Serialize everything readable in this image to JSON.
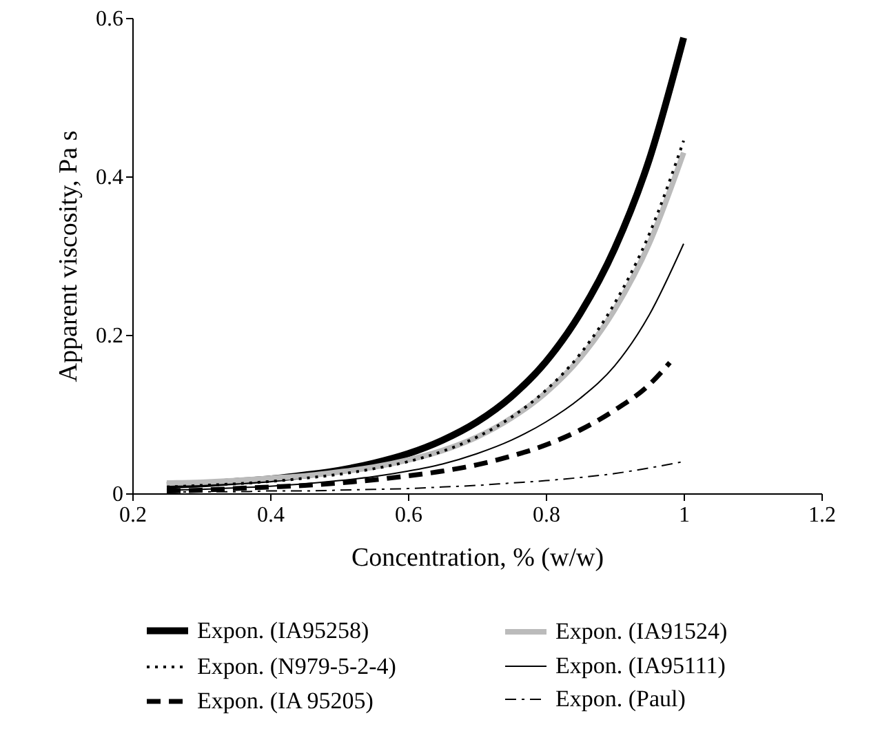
{
  "chart_data": {
    "type": "line",
    "xlabel": "Concentration, % (w/w)",
    "ylabel": "Apparent viscosity, Pa s",
    "xlim": [
      0.2,
      1.2
    ],
    "xticks": [
      0.2,
      0.4,
      0.6,
      0.8,
      1,
      1.2
    ],
    "ylim": [
      0,
      0.6
    ],
    "yticks": [
      0,
      0.2,
      0.4,
      0.6
    ],
    "grid": false,
    "legend": "bottom",
    "marker": "none",
    "x": [
      0.25,
      0.3,
      0.35,
      0.4,
      0.45,
      0.5,
      0.55,
      0.6,
      0.65,
      0.7,
      0.75,
      0.8,
      0.85,
      0.9,
      0.95,
      1.0
    ],
    "series": [
      {
        "name": "Expon. (IA95258)",
        "color": "#000000",
        "line_style": "solid",
        "values": [
          0.01,
          0.012,
          0.015,
          0.018,
          0.023,
          0.029,
          0.038,
          0.05,
          0.067,
          0.09,
          0.122,
          0.166,
          0.227,
          0.309,
          0.421,
          0.575
        ]
      },
      {
        "name": "Expon. (IA91524)",
        "color": "#bbbbbb",
        "line_style": "solid",
        "values": [
          0.013,
          0.014,
          0.016,
          0.019,
          0.022,
          0.027,
          0.033,
          0.042,
          0.054,
          0.071,
          0.095,
          0.127,
          0.171,
          0.232,
          0.315,
          0.43
        ]
      },
      {
        "name": "Expon. (N979-5-2-4)",
        "color": "#000000",
        "line_style": "dotted",
        "values": [
          0.008,
          0.01,
          0.012,
          0.015,
          0.019,
          0.024,
          0.031,
          0.04,
          0.053,
          0.071,
          0.096,
          0.13,
          0.176,
          0.24,
          0.327,
          0.445
        ]
      },
      {
        "name": "Expon. (IA95111)",
        "color": "#000000",
        "line_style": "solid",
        "values": [
          0.004,
          0.005,
          0.007,
          0.009,
          0.012,
          0.016,
          0.021,
          0.028,
          0.037,
          0.05,
          0.067,
          0.09,
          0.12,
          0.161,
          0.225,
          0.315
        ]
      },
      {
        "name": "Expon. (IA 95205)",
        "color": "#000000",
        "line_style": "dashed",
        "x": [
          0.25,
          0.3,
          0.35,
          0.4,
          0.45,
          0.5,
          0.55,
          0.6,
          0.65,
          0.7,
          0.75,
          0.8,
          0.85,
          0.9,
          0.95,
          0.98
        ],
        "values": [
          0.003,
          0.004,
          0.006,
          0.008,
          0.01,
          0.013,
          0.017,
          0.022,
          0.028,
          0.036,
          0.047,
          0.061,
          0.08,
          0.105,
          0.137,
          0.165
        ]
      },
      {
        "name": "Expon. (Paul)",
        "color": "#000000",
        "line_style": "dashed",
        "values": [
          0.001,
          0.002,
          0.002,
          0.003,
          0.003,
          0.004,
          0.005,
          0.006,
          0.008,
          0.01,
          0.013,
          0.016,
          0.02,
          0.025,
          0.032,
          0.04
        ]
      }
    ]
  }
}
